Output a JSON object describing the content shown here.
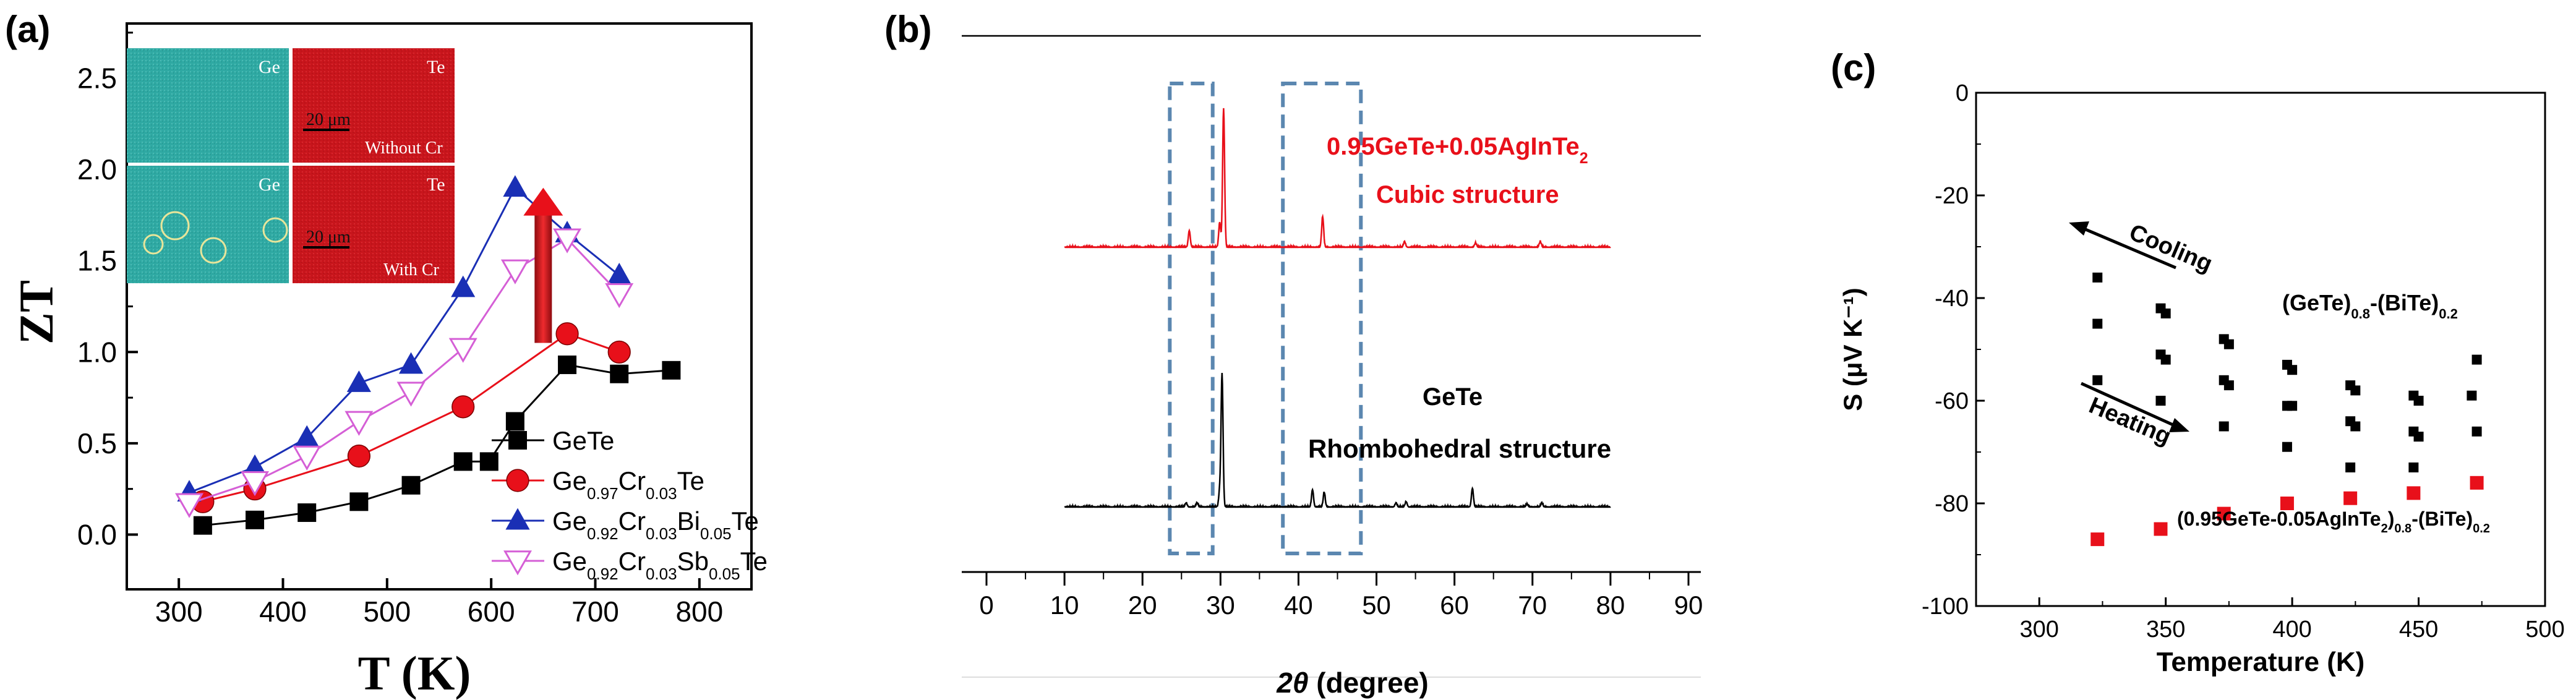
{
  "colors": {
    "red": "#e8101a",
    "blue": "#1a2fb5",
    "pink": "#d55fd6",
    "black": "#000000",
    "map_green": "#2fa9a3",
    "map_red": "#c8151c",
    "dash_box": "#5b87b0",
    "circle": "#e7e59a"
  },
  "chart_data": [
    {
      "panel": "(a)",
      "type": "line",
      "xlabel": "T (K)",
      "ylabel": "ZT",
      "xlim": [
        250,
        850
      ],
      "ylim": [
        -0.3,
        2.8
      ],
      "xticks": [
        "300",
        "400",
        "500",
        "600",
        "700",
        "800"
      ],
      "yticks": [
        "0.0",
        "0.5",
        "1.0",
        "1.5",
        "2.0",
        "2.5"
      ],
      "legend_position": "bottom-right",
      "series": [
        {
          "name": "GeTe",
          "marker": "square",
          "color": "#000000",
          "x": [
            323,
            373,
            423,
            473,
            523,
            573,
            598,
            623,
            673,
            723,
            773
          ],
          "y": [
            0.05,
            0.08,
            0.12,
            0.18,
            0.27,
            0.4,
            0.4,
            0.62,
            0.93,
            0.88,
            0.9
          ]
        },
        {
          "name": "Ge0.97Cr0.03Te",
          "name_parts": [
            [
              "Ge",
              ""
            ],
            [
              "0.97",
              "sub"
            ],
            [
              "Cr",
              ""
            ],
            [
              "0.03",
              "sub"
            ],
            [
              "Te",
              ""
            ]
          ],
          "marker": "circle",
          "color": "#e8101a",
          "x": [
            323,
            373,
            473,
            573,
            673,
            723
          ],
          "y": [
            0.18,
            0.25,
            0.43,
            0.7,
            1.1,
            1.0
          ]
        },
        {
          "name": "Ge0.92Cr0.03Bi0.05Te",
          "name_parts": [
            [
              "Ge",
              ""
            ],
            [
              "0.92",
              "sub"
            ],
            [
              "Cr",
              ""
            ],
            [
              "0.03",
              "sub"
            ],
            [
              "Bi",
              ""
            ],
            [
              "0.05",
              "sub"
            ],
            [
              "Te",
              ""
            ]
          ],
          "marker": "triangle-up",
          "color": "#1a2fb5",
          "x": [
            310,
            373,
            423,
            473,
            523,
            573,
            623,
            673,
            723
          ],
          "y": [
            0.23,
            0.37,
            0.53,
            0.83,
            0.93,
            1.35,
            1.9,
            1.65,
            1.42
          ]
        },
        {
          "name": "Ge0.92Cr0.03Sb0.05Te",
          "name_parts": [
            [
              "Ge",
              ""
            ],
            [
              "0.92",
              "sub"
            ],
            [
              "Cr",
              ""
            ],
            [
              "0.03",
              "sub"
            ],
            [
              "Sb",
              ""
            ],
            [
              "0.05",
              "sub"
            ],
            [
              "Te",
              ""
            ]
          ],
          "marker": "triangle-down",
          "color": "#d55fd6",
          "x": [
            310,
            373,
            423,
            473,
            523,
            573,
            623,
            673,
            723
          ],
          "y": [
            0.17,
            0.29,
            0.43,
            0.62,
            0.78,
            1.02,
            1.45,
            1.62,
            1.32
          ]
        }
      ],
      "arrow": {
        "x": 650,
        "y_from": 1.05,
        "y_to": 1.9,
        "color": "#e8101a"
      },
      "inset_labels": {
        "ge_top": "Ge",
        "te_top": "Te",
        "scale_top": "20 μm",
        "caption_top": "Without Cr",
        "ge_bottom": "Ge",
        "te_bottom": "Te",
        "scale_bottom": "20 μm",
        "caption_bottom": "With Cr"
      }
    },
    {
      "panel": "(b)",
      "type": "line",
      "xlabel": "2θ (degree)",
      "xlim": [
        0,
        90
      ],
      "xticks": [
        "0",
        "10",
        "20",
        "30",
        "40",
        "50",
        "60",
        "70",
        "80",
        "90"
      ],
      "series": [
        {
          "name": "0.95GeTe+0.05AgInTe2",
          "label_parts": [
            [
              "0.95GeTe+0.05AgInTe",
              ""
            ],
            [
              "2",
              "sub"
            ]
          ],
          "label2": "Cubic structure",
          "color": "#e8101a",
          "peaks": [
            [
              26.0,
              0.12
            ],
            [
              29.9,
              0.18
            ],
            [
              30.4,
              1.0
            ],
            [
              43.1,
              0.22
            ],
            [
              53.6,
              0.04
            ],
            [
              62.7,
              0.03
            ],
            [
              71.0,
              0.04
            ]
          ]
        },
        {
          "name": "GeTe",
          "label2": "Rhombohedral structure",
          "color": "#000000",
          "peaks": [
            [
              25.6,
              0.03
            ],
            [
              27.0,
              0.03
            ],
            [
              29.9,
              0.12
            ],
            [
              30.2,
              1.0
            ],
            [
              41.8,
              0.13
            ],
            [
              43.3,
              0.11
            ],
            [
              52.5,
              0.03
            ],
            [
              53.8,
              0.04
            ],
            [
              62.3,
              0.14
            ],
            [
              69.3,
              0.02
            ],
            [
              71.2,
              0.03
            ]
          ]
        }
      ],
      "boxes": [
        [
          23.5,
          29.0
        ],
        [
          38.0,
          48.0
        ]
      ]
    },
    {
      "panel": "(c)",
      "type": "scatter",
      "xlabel": "Temperature (K)",
      "ylabel": "S (μV K⁻¹)",
      "xlim": [
        275,
        500
      ],
      "ylim": [
        -100,
        0
      ],
      "xticks": [
        "300",
        "350",
        "400",
        "450",
        "500"
      ],
      "yticks": [
        "0",
        "-20",
        "-40",
        "-60",
        "-80",
        "-100"
      ],
      "series": [
        {
          "name": "(GeTe)0.8-(BiTe)0.2",
          "label_parts": [
            [
              "(GeTe)",
              ""
            ],
            [
              "0.8",
              "sub"
            ],
            [
              "-(BiTe)",
              ""
            ],
            [
              "0.2",
              "sub"
            ]
          ],
          "color": "#000000",
          "x": [
            323,
            323,
            323,
            348,
            350,
            348,
            350,
            348,
            373,
            375,
            373,
            375,
            373,
            398,
            400,
            398,
            400,
            398,
            423,
            425,
            423,
            425,
            423,
            448,
            450,
            448,
            450,
            448,
            473,
            471,
            473
          ],
          "y": [
            -36,
            -45,
            -56,
            -42,
            -43,
            -51,
            -52,
            -60,
            -48,
            -49,
            -56,
            -57,
            -65,
            -53,
            -54,
            -61,
            -61,
            -69,
            -57,
            -58,
            -64,
            -65,
            -73,
            -59,
            -60,
            -66,
            -67,
            -73,
            -52,
            -59,
            -66
          ]
        },
        {
          "name": "(0.95GeTe-0.05AgInTe2)0.8-(BiTe)0.2",
          "label_parts": [
            [
              "(0.95GeTe-0.05AgInTe",
              ""
            ],
            [
              "2",
              "sub"
            ],
            [
              ")",
              ""
            ],
            [
              "0.8",
              "sub"
            ],
            [
              "-(BiTe)",
              ""
            ],
            [
              "0.2",
              "sub"
            ]
          ],
          "color": "#e8101a",
          "x": [
            323,
            348,
            373,
            398,
            423,
            448,
            473
          ],
          "y": [
            -87,
            -85,
            -82,
            -80,
            -79,
            -78,
            -76
          ]
        }
      ],
      "annotations": [
        "Cooling",
        "Heating"
      ]
    }
  ]
}
